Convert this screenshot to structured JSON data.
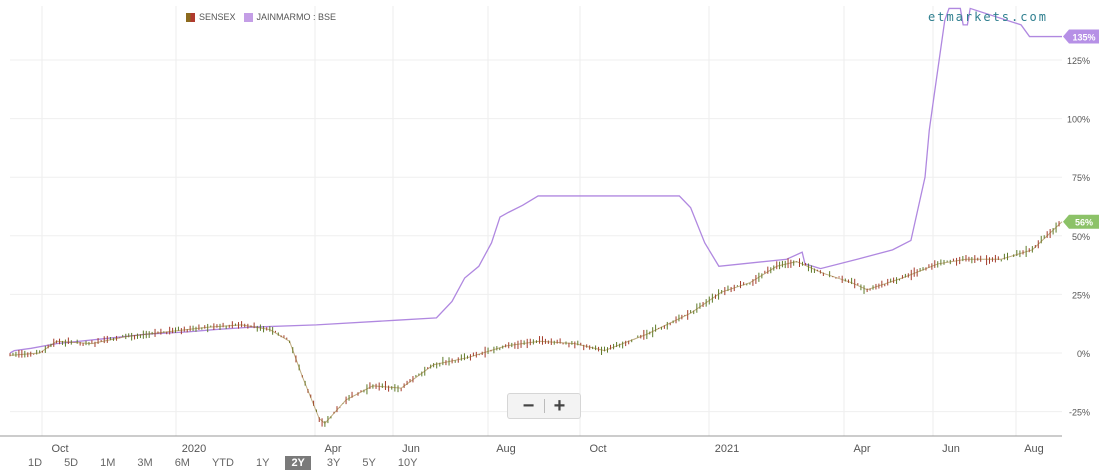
{
  "legend": [
    {
      "name": "SENSEX",
      "color": "#8c6a1e"
    },
    {
      "name": "JAINMARMO : BSE",
      "color": "#c49ee6"
    }
  ],
  "watermark": "etmarkets.com",
  "zoom": {
    "minus": "−",
    "plus": "+"
  },
  "ranges": [
    "1D",
    "5D",
    "1M",
    "3M",
    "6M",
    "YTD",
    "1Y",
    "2Y",
    "3Y",
    "5Y",
    "10Y"
  ],
  "active_range": "2Y",
  "chart_data": {
    "type": "line",
    "x_ticks": [
      "Oct",
      "2020",
      "Apr",
      "Jun",
      "Aug",
      "Oct",
      "2021",
      "Apr",
      "Jun",
      "Aug"
    ],
    "y_ticks": [
      "-25%",
      "0%",
      "25%",
      "50%",
      "75%",
      "100%",
      "125%"
    ],
    "ylim": [
      -37,
      140
    ],
    "series": [
      {
        "name": "JAINMARMO : BSE",
        "color": "#b088e0",
        "last_label": "135%",
        "points": [
          [
            "2019-08-21",
            0
          ],
          [
            "2019-08-24",
            1
          ],
          [
            "2019-09-05",
            2
          ],
          [
            "2019-09-23",
            4
          ],
          [
            "2019-10-25",
            6
          ],
          [
            "2019-11-25",
            8
          ],
          [
            "2019-12-25",
            9
          ],
          [
            "2020-01-13",
            10
          ],
          [
            "2020-02-07",
            11
          ],
          [
            "2020-03-25",
            12
          ],
          [
            "2020-05-21",
            14
          ],
          [
            "2020-06-18",
            15
          ],
          [
            "2020-06-29",
            22
          ],
          [
            "2020-07-08",
            32
          ],
          [
            "2020-07-18",
            37
          ],
          [
            "2020-07-27",
            47
          ],
          [
            "2020-08-02",
            58
          ],
          [
            "2020-08-08",
            60
          ],
          [
            "2020-08-18",
            63
          ],
          [
            "2020-08-29",
            67
          ],
          [
            "2020-12-07",
            67
          ],
          [
            "2020-12-15",
            62
          ],
          [
            "2020-12-25",
            47
          ],
          [
            "2021-01-04",
            37
          ],
          [
            "2021-01-20",
            38
          ],
          [
            "2021-02-21",
            40
          ],
          [
            "2021-03-04",
            43
          ],
          [
            "2021-03-06",
            38
          ],
          [
            "2021-03-17",
            36
          ],
          [
            "2021-04-12",
            40
          ],
          [
            "2021-05-07",
            44
          ],
          [
            "2021-05-20",
            48
          ],
          [
            "2021-05-30",
            75
          ],
          [
            "2021-06-02",
            95
          ],
          [
            "2021-06-05",
            108
          ],
          [
            "2021-06-09",
            125
          ],
          [
            "2021-06-13",
            142
          ],
          [
            "2021-06-16",
            147
          ],
          [
            "2021-06-24",
            147
          ],
          [
            "2021-06-26",
            140
          ],
          [
            "2021-06-29",
            140
          ],
          [
            "2021-07-01",
            147
          ],
          [
            "2021-08-06",
            140
          ],
          [
            "2021-08-12",
            135
          ],
          [
            "2021-09-04",
            135
          ]
        ]
      },
      {
        "name": "SENSEX",
        "color": "#8c6a1e",
        "last_label": "56%",
        "points": [
          [
            "2019-08-21",
            -1
          ],
          [
            "2019-09-11",
            0
          ],
          [
            "2019-09-23",
            5
          ],
          [
            "2019-10-18",
            4
          ],
          [
            "2019-11-11",
            7
          ],
          [
            "2019-12-10",
            9
          ],
          [
            "2020-01-08",
            11
          ],
          [
            "2020-02-01",
            12
          ],
          [
            "2020-02-21",
            10
          ],
          [
            "2020-03-06",
            5
          ],
          [
            "2020-03-15",
            -10
          ],
          [
            "2020-03-27",
            -28
          ],
          [
            "2020-03-31",
            -30
          ],
          [
            "2020-04-15",
            -20
          ],
          [
            "2020-05-04",
            -14
          ],
          [
            "2020-05-24",
            -15
          ],
          [
            "2020-06-16",
            -5
          ],
          [
            "2020-07-10",
            -2
          ],
          [
            "2020-08-06",
            3
          ],
          [
            "2020-08-30",
            5
          ],
          [
            "2020-09-24",
            4
          ],
          [
            "2020-10-15",
            1
          ],
          [
            "2020-11-14",
            8
          ],
          [
            "2020-12-15",
            17
          ],
          [
            "2021-01-06",
            26
          ],
          [
            "2021-01-26",
            30
          ],
          [
            "2021-02-14",
            37
          ],
          [
            "2021-02-28",
            39
          ],
          [
            "2021-03-19",
            34
          ],
          [
            "2021-04-08",
            30
          ],
          [
            "2021-04-19",
            27
          ],
          [
            "2021-05-14",
            32
          ],
          [
            "2021-06-08",
            38
          ],
          [
            "2021-06-28",
            40
          ],
          [
            "2021-07-23",
            40
          ],
          [
            "2021-08-14",
            44
          ],
          [
            "2021-09-04",
            56
          ]
        ]
      }
    ]
  }
}
